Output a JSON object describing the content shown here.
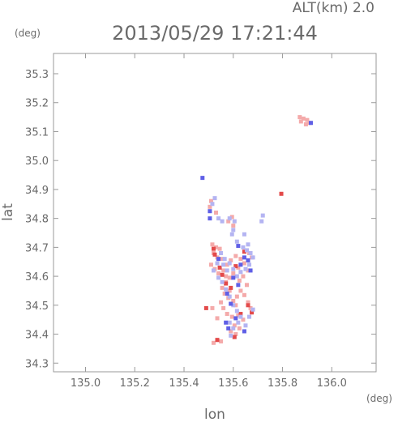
{
  "header": {
    "altitude_label": "ALT(km) 2.0",
    "timestamp": "2013/05/29 17:21:44"
  },
  "chart_data": {
    "type": "scatter",
    "title": "2013/05/29 17:21:44",
    "subtitle": "ALT(km) 2.0",
    "xlabel": "lon",
    "ylabel": "lat",
    "x_unit": "(deg)",
    "y_unit": "(deg)",
    "xlim": [
      134.87,
      136.18
    ],
    "ylim": [
      34.27,
      35.37
    ],
    "x_ticks": [
      "135.0",
      "135.2",
      "135.4",
      "135.6",
      "135.8",
      "136.0"
    ],
    "y_ticks": [
      "34.3",
      "34.4",
      "34.5",
      "34.6",
      "34.7",
      "34.8",
      "34.9",
      "35.0",
      "35.1",
      "35.2",
      "35.3"
    ],
    "grid": false,
    "legend": "none",
    "colors": {
      "positive_strong": "#e34a4a",
      "positive_weak": "#f4aaaa",
      "negative_strong": "#5f5fe6",
      "negative_weak": "#b4b4f2"
    },
    "series": [
      {
        "name": "positive",
        "color": "#f4aaaa",
        "points": [
          [
            135.87,
            35.15
          ],
          [
            135.885,
            35.145
          ],
          [
            135.9,
            35.14
          ],
          [
            135.91,
            35.13
          ],
          [
            135.875,
            35.135
          ],
          [
            135.895,
            35.125
          ],
          [
            135.515,
            34.71
          ],
          [
            135.53,
            34.7
          ],
          [
            135.545,
            34.695
          ],
          [
            135.52,
            34.68
          ],
          [
            135.535,
            34.665
          ],
          [
            135.555,
            34.66
          ],
          [
            135.51,
            34.64
          ],
          [
            135.525,
            34.625
          ],
          [
            135.54,
            34.61
          ],
          [
            135.56,
            34.62
          ],
          [
            135.575,
            34.64
          ],
          [
            135.59,
            34.655
          ],
          [
            135.61,
            34.67
          ],
          [
            135.63,
            34.66
          ],
          [
            135.645,
            34.645
          ],
          [
            135.62,
            34.63
          ],
          [
            135.6,
            34.61
          ],
          [
            135.585,
            34.595
          ],
          [
            135.57,
            34.58
          ],
          [
            135.555,
            34.56
          ],
          [
            135.565,
            34.54
          ],
          [
            135.58,
            34.525
          ],
          [
            135.6,
            34.515
          ],
          [
            135.615,
            34.53
          ],
          [
            135.63,
            34.55
          ],
          [
            135.645,
            34.535
          ],
          [
            135.66,
            34.51
          ],
          [
            135.67,
            34.49
          ],
          [
            135.55,
            34.51
          ],
          [
            135.56,
            34.49
          ],
          [
            135.575,
            34.47
          ],
          [
            135.62,
            34.465
          ],
          [
            135.64,
            34.45
          ],
          [
            135.605,
            34.43
          ],
          [
            135.59,
            34.41
          ],
          [
            135.61,
            34.4
          ],
          [
            135.625,
            34.42
          ],
          [
            135.515,
            34.49
          ],
          [
            135.52,
            34.37
          ],
          [
            135.535,
            34.38
          ],
          [
            135.55,
            34.375
          ],
          [
            135.58,
            34.79
          ],
          [
            135.595,
            34.805
          ],
          [
            135.6,
            34.775
          ],
          [
            135.51,
            34.86
          ],
          [
            135.505,
            34.84
          ],
          [
            135.53,
            34.82
          ],
          [
            135.665,
            34.68
          ],
          [
            135.675,
            34.665
          ],
          [
            135.66,
            34.62
          ],
          [
            135.64,
            34.6
          ],
          [
            135.625,
            34.585
          ],
          [
            135.655,
            34.57
          ],
          [
            135.535,
            34.455
          ],
          [
            135.595,
            34.46
          ],
          [
            135.61,
            34.5
          ],
          [
            135.585,
            34.55
          ],
          [
            135.57,
            34.6
          ]
        ]
      },
      {
        "name": "positive-strong",
        "color": "#e34a4a",
        "points": [
          [
            135.795,
            34.885
          ],
          [
            135.52,
            34.695
          ],
          [
            135.545,
            34.63
          ],
          [
            135.555,
            34.605
          ],
          [
            135.57,
            34.575
          ],
          [
            135.61,
            34.635
          ],
          [
            135.605,
            34.39
          ],
          [
            135.675,
            34.475
          ],
          [
            135.535,
            34.38
          ],
          [
            135.49,
            34.49
          ],
          [
            135.59,
            34.56
          ],
          [
            135.63,
            34.47
          ],
          [
            135.66,
            34.5
          ],
          [
            135.525,
            34.675
          ],
          [
            135.645,
            34.685
          ]
        ]
      },
      {
        "name": "negative",
        "color": "#b4b4f2",
        "points": [
          [
            135.525,
            34.87
          ],
          [
            135.515,
            34.85
          ],
          [
            135.54,
            34.8
          ],
          [
            135.555,
            34.79
          ],
          [
            135.585,
            34.8
          ],
          [
            135.605,
            34.79
          ],
          [
            135.6,
            34.76
          ],
          [
            135.595,
            34.745
          ],
          [
            135.615,
            34.72
          ],
          [
            135.64,
            34.7
          ],
          [
            135.655,
            34.69
          ],
          [
            135.67,
            34.68
          ],
          [
            135.68,
            34.665
          ],
          [
            135.665,
            34.64
          ],
          [
            135.65,
            34.625
          ],
          [
            135.63,
            34.615
          ],
          [
            135.615,
            34.6
          ],
          [
            135.6,
            34.625
          ],
          [
            135.585,
            34.645
          ],
          [
            135.565,
            34.66
          ],
          [
            135.55,
            34.68
          ],
          [
            135.535,
            34.645
          ],
          [
            135.52,
            34.62
          ],
          [
            135.54,
            34.595
          ],
          [
            135.555,
            34.58
          ],
          [
            135.57,
            34.555
          ],
          [
            135.585,
            34.53
          ],
          [
            135.6,
            34.5
          ],
          [
            135.615,
            34.48
          ],
          [
            135.63,
            34.46
          ],
          [
            135.62,
            34.44
          ],
          [
            135.6,
            34.42
          ],
          [
            135.585,
            34.44
          ],
          [
            135.59,
            34.395
          ],
          [
            135.65,
            34.43
          ],
          [
            135.665,
            34.46
          ],
          [
            135.68,
            34.485
          ],
          [
            135.715,
            34.79
          ],
          [
            135.72,
            34.81
          ],
          [
            135.645,
            34.745
          ],
          [
            135.66,
            34.71
          ],
          [
            135.575,
            34.62
          ],
          [
            135.56,
            34.64
          ]
        ]
      },
      {
        "name": "negative-strong",
        "color": "#5f5fe6",
        "points": [
          [
            135.475,
            34.94
          ],
          [
            135.505,
            34.825
          ],
          [
            135.62,
            34.705
          ],
          [
            135.645,
            34.665
          ],
          [
            135.66,
            34.655
          ],
          [
            135.63,
            34.64
          ],
          [
            135.6,
            34.595
          ],
          [
            135.575,
            34.54
          ],
          [
            135.59,
            34.505
          ],
          [
            135.61,
            34.455
          ],
          [
            135.645,
            34.41
          ],
          [
            135.58,
            34.42
          ],
          [
            135.54,
            34.66
          ],
          [
            135.67,
            34.62
          ],
          [
            135.915,
            35.13
          ],
          [
            135.505,
            34.8
          ],
          [
            135.62,
            34.57
          ],
          [
            135.57,
            34.44
          ]
        ]
      }
    ]
  }
}
